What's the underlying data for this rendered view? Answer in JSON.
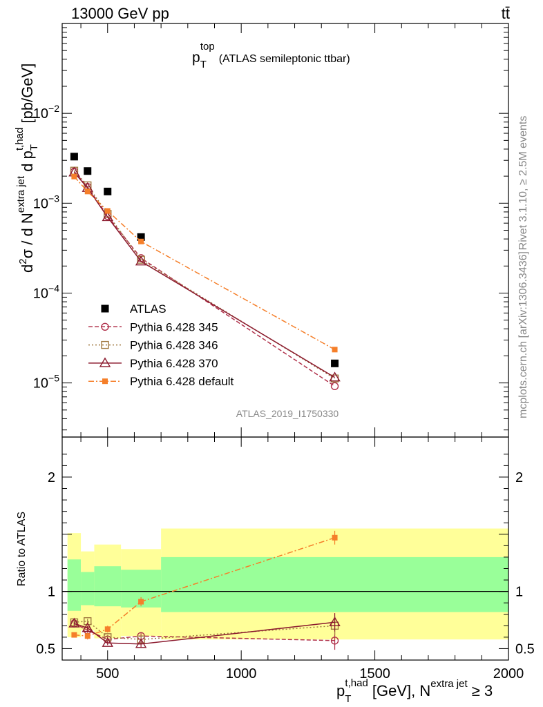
{
  "header": {
    "left": "13000 GeV pp",
    "right": "tt̄"
  },
  "side": {
    "rivet": "Rivet 3.1.10, ≥ 2.5M events",
    "mcplots": "mcplots.cern.ch [arXiv:1306.3436]"
  },
  "colors": {
    "data": "#000000",
    "p345": "#b0304a",
    "p346": "#a07840",
    "p370": "#8b1a2e",
    "pdef": "#f57f2a",
    "band_outer": "#ffff99",
    "band_inner": "#99ff99"
  },
  "chart_data": [
    {
      "type": "scatter",
      "title": "p_T^top (ATLAS semileptonic ttbar)",
      "title_main": "p",
      "title_sub": "T",
      "title_sup": "top",
      "title_rest": "(ATLAS semileptonic ttbar)",
      "ylabel": "d²σ / d N^{extra jet} d p_T^{t,had} [pb/GeV]",
      "ylabel_parts": {
        "d": "d",
        "two": "2",
        "sigma": "σ / d N",
        "extra": "extra jet",
        "dp": " d p",
        "T": "T",
        "thad": "t,had",
        "unit": " [pb/GeV]"
      },
      "yscale": "log",
      "ylim": [
        2.5e-06,
        0.1
      ],
      "xlim": [
        330,
        2000
      ],
      "yticks": [
        {
          "value": 1e-05,
          "label": "10",
          "exp": "−5"
        },
        {
          "value": 0.0001,
          "label": "10",
          "exp": "−4"
        },
        {
          "value": 0.001,
          "label": "10",
          "exp": "−3"
        },
        {
          "value": 0.01,
          "label": "10",
          "exp": "−2"
        }
      ],
      "x": [
        375,
        425,
        500,
        625,
        1350
      ],
      "series": [
        {
          "name": "ATLAS",
          "values": [
            0.0033,
            0.00228,
            0.00135,
            0.00042,
            1.65e-05
          ]
        },
        {
          "name": "Pythia 6.428 345",
          "values": [
            0.00225,
            0.00152,
            0.00072,
            0.000245,
            9.2e-06
          ]
        },
        {
          "name": "Pythia 6.428 346",
          "values": [
            0.0023,
            0.00158,
            0.00076,
            0.000235,
            1.12e-05
          ]
        },
        {
          "name": "Pythia 6.428 370",
          "values": [
            0.0022,
            0.00148,
            0.0007,
            0.000225,
            1.15e-05
          ]
        },
        {
          "name": "Pythia 6.428 default",
          "values": [
            0.00198,
            0.00135,
            0.00082,
            0.000375,
            2.35e-05
          ]
        }
      ],
      "watermark": "ATLAS_2019_I1750330"
    },
    {
      "type": "scatter",
      "ylabel": "Ratio to ATLAS",
      "ylim": [
        0.4,
        2.35
      ],
      "xlim": [
        330,
        2000
      ],
      "yticks": [
        {
          "value": 0.5,
          "label": "0.5"
        },
        {
          "value": 1,
          "label": "1"
        },
        {
          "value": 2,
          "label": "2"
        }
      ],
      "xticks": [
        {
          "value": 500,
          "label": "500"
        },
        {
          "value": 1000,
          "label": "1000"
        },
        {
          "value": 1500,
          "label": "1500"
        },
        {
          "value": 2000,
          "label": "2000"
        }
      ],
      "xlabel": "p_T^{t,had} [GeV], N^{extra jet} ≥ 3",
      "xlabel_parts": {
        "p": "p",
        "T": "T",
        "thad": "t,had",
        "mid": " [GeV], N",
        "extra": "extra jet",
        "ge": " ≥ 3"
      },
      "bins": [
        {
          "lo": 350,
          "hi": 400,
          "inner": [
            0.83,
            1.28
          ],
          "outer": [
            0.6,
            1.51
          ]
        },
        {
          "lo": 400,
          "hi": 450,
          "inner": [
            0.88,
            1.17
          ],
          "outer": [
            0.66,
            1.35
          ]
        },
        {
          "lo": 450,
          "hi": 550,
          "inner": [
            0.87,
            1.22
          ],
          "outer": [
            0.59,
            1.41
          ]
        },
        {
          "lo": 550,
          "hi": 700,
          "inner": [
            0.86,
            1.19
          ],
          "outer": [
            0.61,
            1.37
          ]
        },
        {
          "lo": 700,
          "hi": 2000,
          "inner": [
            0.82,
            1.3
          ],
          "outer": [
            0.58,
            1.55
          ]
        }
      ],
      "series": [
        {
          "name": "Pythia 6.428 345",
          "values": [
            0.72,
            0.66,
            0.58,
            0.61,
            0.57
          ],
          "err": [
            0.02,
            0.02,
            0.02,
            0.03,
            0.08
          ]
        },
        {
          "name": "Pythia 6.428 346",
          "values": [
            0.73,
            0.74,
            0.6,
            0.58,
            0.7
          ],
          "err": [
            0.02,
            0.02,
            0.02,
            0.03,
            0.08
          ]
        },
        {
          "name": "Pythia 6.428 370",
          "values": [
            0.72,
            0.68,
            0.55,
            0.54,
            0.73
          ],
          "err": [
            0.02,
            0.02,
            0.02,
            0.03,
            0.08
          ]
        },
        {
          "name": "Pythia 6.428 default",
          "values": [
            0.62,
            0.61,
            0.67,
            0.91,
            1.47
          ],
          "err": [
            0.02,
            0.03,
            0.03,
            0.04,
            0.06
          ]
        }
      ]
    }
  ]
}
